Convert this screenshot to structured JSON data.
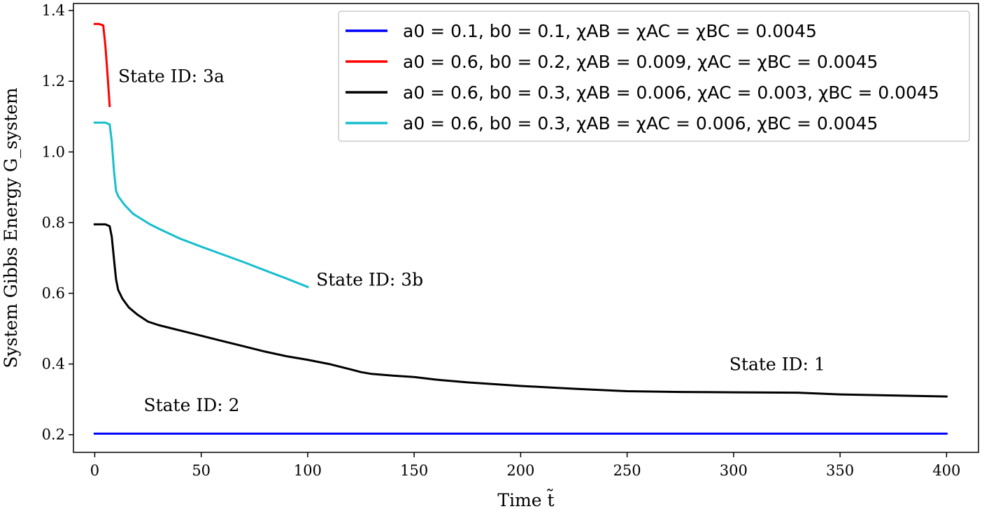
{
  "chart_data": {
    "type": "line",
    "xlabel": "Time t̃",
    "ylabel": "System Gibbs Energy G_system",
    "xlim": [
      -10,
      415
    ],
    "ylim": [
      0.15,
      1.42
    ],
    "xticks": [
      0,
      50,
      100,
      150,
      200,
      250,
      300,
      350,
      400
    ],
    "yticks": [
      0.2,
      0.4,
      0.6,
      0.8,
      1.0,
      1.2,
      1.4
    ],
    "xtick_labels": [
      "0",
      "50",
      "100",
      "150",
      "200",
      "250",
      "300",
      "350",
      "400"
    ],
    "ytick_labels": [
      "0.2",
      "0.4",
      "0.6",
      "0.8",
      "1.0",
      "1.2",
      "1.4"
    ],
    "grid": false,
    "legend_position": "top-right",
    "series": [
      {
        "name": "a0 = 0.1, b0 = 0.1, χAB = χAC = χBC = 0.0045",
        "color": "#0000ff",
        "x": [
          0,
          400
        ],
        "y": [
          0.203,
          0.203
        ]
      },
      {
        "name": "a0 = 0.6, b0 = 0.2, χAB = 0.009, χAC = χBC = 0.0045",
        "color": "#ff0000",
        "x": [
          0,
          2,
          4,
          5,
          6,
          7
        ],
        "y": [
          1.362,
          1.362,
          1.358,
          1.3,
          1.22,
          1.13
        ]
      },
      {
        "name": "a0 = 0.6, b0 = 0.3, χAB = 0.006, χAC = 0.003, χBC = 0.0045",
        "color": "#000000",
        "x": [
          0,
          5,
          7,
          8,
          9,
          10,
          11,
          13,
          16,
          20,
          25,
          30,
          40,
          50,
          60,
          70,
          80,
          90,
          100,
          110,
          120,
          125,
          130,
          140,
          150,
          160,
          175,
          200,
          225,
          250,
          275,
          300,
          330,
          350,
          375,
          400
        ],
        "y": [
          0.795,
          0.795,
          0.79,
          0.76,
          0.7,
          0.64,
          0.61,
          0.585,
          0.56,
          0.54,
          0.52,
          0.51,
          0.495,
          0.48,
          0.465,
          0.45,
          0.435,
          0.422,
          0.412,
          0.4,
          0.385,
          0.377,
          0.372,
          0.367,
          0.363,
          0.356,
          0.348,
          0.338,
          0.33,
          0.323,
          0.321,
          0.32,
          0.319,
          0.314,
          0.311,
          0.308
        ]
      },
      {
        "name": "a0 = 0.6, b0 = 0.3, χAB = χAC = 0.006, χBC = 0.0045",
        "color": "#17becf",
        "x": [
          0,
          5,
          7,
          8,
          9,
          10,
          11,
          14,
          18,
          22,
          26,
          30,
          40,
          50,
          60,
          70,
          80,
          90,
          100
        ],
        "y": [
          1.083,
          1.083,
          1.078,
          1.03,
          0.95,
          0.89,
          0.875,
          0.85,
          0.825,
          0.81,
          0.795,
          0.783,
          0.755,
          0.732,
          0.71,
          0.688,
          0.665,
          0.642,
          0.618
        ]
      }
    ],
    "annotations": [
      {
        "text": "State ID: 3a",
        "x": 11,
        "y": 1.215
      },
      {
        "text": "State ID: 3b",
        "x": 104,
        "y": 0.64
      },
      {
        "text": "State ID: 1",
        "x": 298,
        "y": 0.4
      },
      {
        "text": "State ID: 2",
        "x": 23,
        "y": 0.285
      }
    ]
  }
}
